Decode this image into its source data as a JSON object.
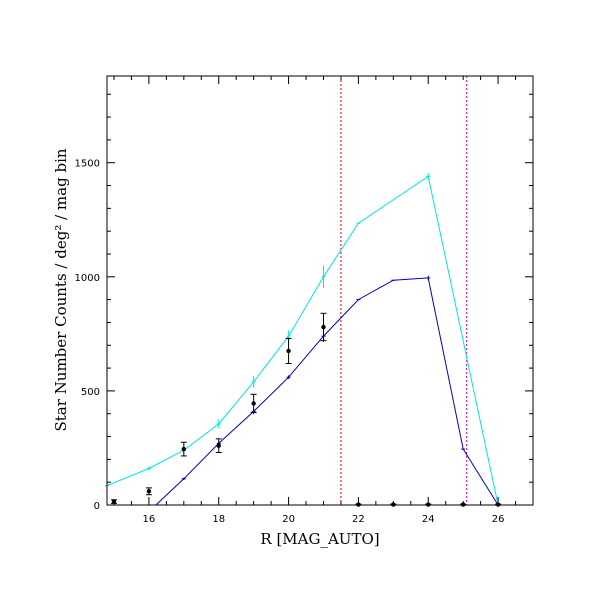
{
  "chart_data": {
    "type": "line",
    "xlabel": "R [MAG_AUTO]",
    "ylabel": "Star Number Counts / deg² / mag bin",
    "xlim": [
      14.8,
      27
    ],
    "ylim": [
      0,
      1880
    ],
    "x_ticks": [
      16,
      18,
      20,
      22,
      24,
      26
    ],
    "y_ticks": [
      0,
      500,
      1000,
      1500
    ],
    "grid": false,
    "series": [
      {
        "color": "#00e5e5",
        "x": [
          14.8,
          16,
          17,
          18,
          19,
          20,
          21,
          22,
          24,
          26
        ],
        "y": [
          85,
          160,
          240,
          355,
          540,
          740,
          1000,
          1235,
          1440,
          0
        ],
        "err": [
          0,
          10,
          15,
          20,
          25,
          25,
          50,
          0,
          15,
          0
        ]
      },
      {
        "color": "#0000bb",
        "x": [
          16.2,
          17,
          18,
          19,
          20,
          21,
          22,
          23,
          24,
          25,
          26
        ],
        "y": [
          0,
          115,
          270,
          410,
          560,
          740,
          900,
          985,
          995,
          245,
          0
        ],
        "err": [
          0,
          5,
          8,
          12,
          8,
          25,
          0,
          0,
          10,
          0,
          0
        ]
      },
      {
        "color": "#000000",
        "style": "points",
        "x": [
          15,
          16,
          17,
          18,
          19,
          20,
          21,
          22,
          23,
          24,
          25,
          26
        ],
        "y": [
          15,
          60,
          245,
          260,
          445,
          675,
          780,
          2,
          2,
          2,
          2,
          2
        ],
        "err": [
          8,
          15,
          30,
          30,
          40,
          55,
          60,
          2,
          2,
          2,
          2,
          2
        ]
      }
    ],
    "vlines": [
      {
        "x": 21.5,
        "color": "#cc0000"
      },
      {
        "x": 25.1,
        "color": "#cc00cc"
      }
    ]
  }
}
